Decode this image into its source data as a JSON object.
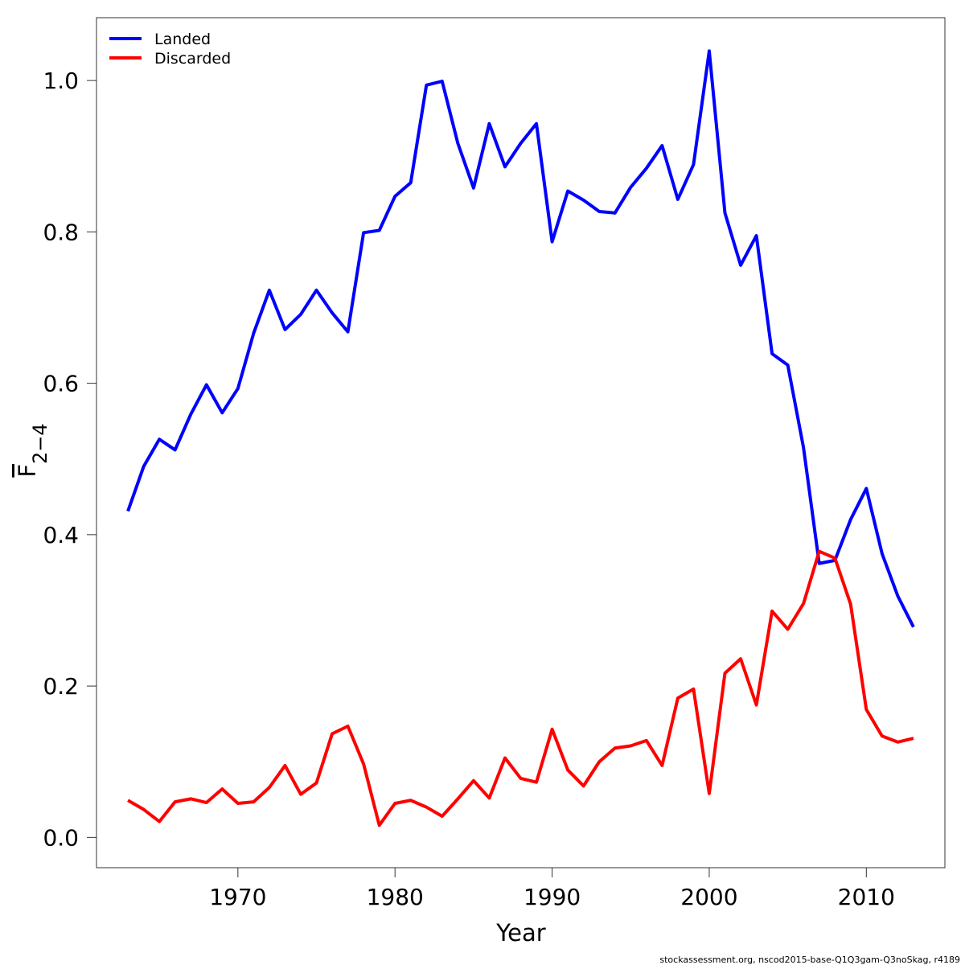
{
  "chart_data": {
    "type": "line",
    "x_label": "Year",
    "y_label": {
      "main": "F",
      "subscript": "2−4"
    },
    "caption": "stockassessment.org, nscod2015-base-Q1Q3gam-Q3noSkag, r4189",
    "x": [
      1963,
      1964,
      1965,
      1966,
      1967,
      1968,
      1969,
      1970,
      1971,
      1972,
      1973,
      1974,
      1975,
      1976,
      1977,
      1978,
      1979,
      1980,
      1981,
      1982,
      1983,
      1984,
      1985,
      1986,
      1987,
      1988,
      1989,
      1990,
      1991,
      1992,
      1993,
      1994,
      1995,
      1996,
      1997,
      1998,
      1999,
      2000,
      2001,
      2002,
      2003,
      2004,
      2005,
      2006,
      2007,
      2008,
      2009,
      2010,
      2011,
      2012,
      2013
    ],
    "series": [
      {
        "name": "Landed",
        "color": "#0000ff",
        "values": [
          0.431,
          0.49,
          0.526,
          0.512,
          0.559,
          0.598,
          0.561,
          0.593,
          0.666,
          0.723,
          0.671,
          0.691,
          0.723,
          0.693,
          0.668,
          0.799,
          0.802,
          0.847,
          0.865,
          0.994,
          0.999,
          0.917,
          0.858,
          0.943,
          0.886,
          0.917,
          0.943,
          0.787,
          0.854,
          0.842,
          0.827,
          0.825,
          0.859,
          0.884,
          0.914,
          0.843,
          0.889,
          1.039,
          0.825,
          0.756,
          0.795,
          0.639,
          0.624,
          0.515,
          0.362,
          0.366,
          0.42,
          0.461,
          0.375,
          0.319,
          0.278
        ]
      },
      {
        "name": "Discarded",
        "color": "#ff0000",
        "values": [
          0.049,
          0.037,
          0.021,
          0.047,
          0.051,
          0.046,
          0.064,
          0.045,
          0.047,
          0.066,
          0.095,
          0.057,
          0.072,
          0.137,
          0.147,
          0.097,
          0.016,
          0.045,
          0.049,
          0.04,
          0.028,
          0.051,
          0.075,
          0.052,
          0.105,
          0.078,
          0.073,
          0.143,
          0.089,
          0.068,
          0.1,
          0.118,
          0.121,
          0.128,
          0.095,
          0.184,
          0.196,
          0.058,
          0.217,
          0.236,
          0.175,
          0.299,
          0.275,
          0.309,
          0.378,
          0.369,
          0.308,
          0.169,
          0.134,
          0.126,
          0.131
        ]
      }
    ],
    "xlim": [
      1961,
      2015
    ],
    "xticks": [
      1970,
      1980,
      1990,
      2000,
      2010
    ],
    "ylim": [
      -0.04,
      1.083
    ],
    "yticks": [
      {
        "value": 0,
        "label": "0.0"
      },
      0.2,
      0.4,
      0.6,
      0.8,
      {
        "value": 1,
        "label": "1.0"
      }
    ],
    "grid": false,
    "legend": "top-left"
  }
}
